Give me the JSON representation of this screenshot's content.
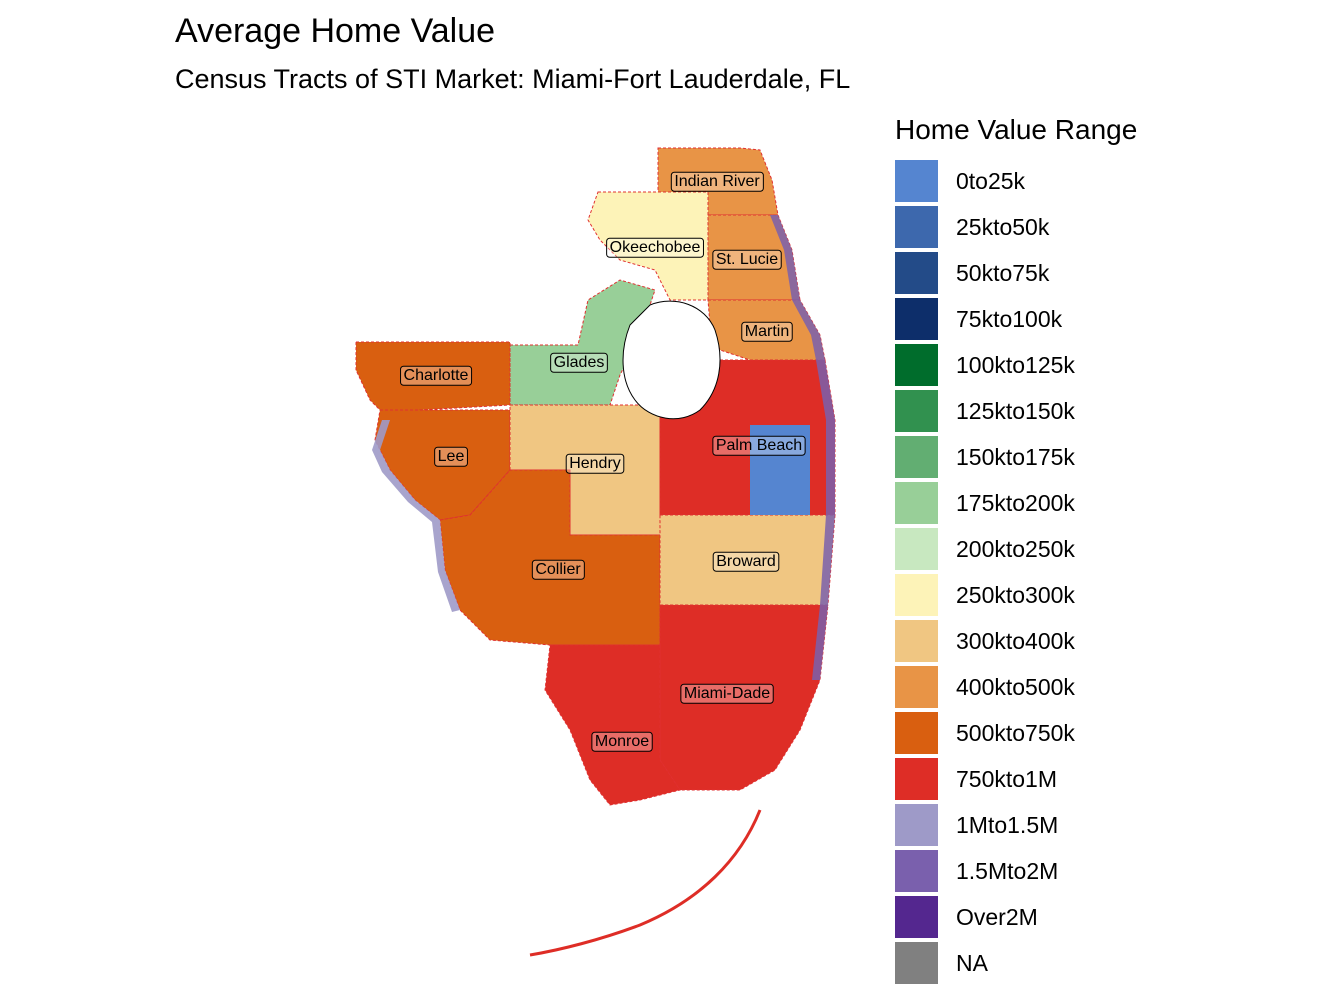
{
  "title": "Average Home Value",
  "subtitle": "Census Tracts of STI Market: Miami-Fort Lauderdale, FL",
  "legend": {
    "title": "Home Value Range",
    "items": [
      {
        "label": "0to25k",
        "color": "#5585d0"
      },
      {
        "label": "25kto50k",
        "color": "#3d68ad"
      },
      {
        "label": "50kto75k",
        "color": "#234b88"
      },
      {
        "label": "75kto100k",
        "color": "#0d2e6a"
      },
      {
        "label": "100kto125k",
        "color": "#006d2c"
      },
      {
        "label": "125kto150k",
        "color": "#31914f"
      },
      {
        "label": "150kto175k",
        "color": "#62ae72"
      },
      {
        "label": "175kto200k",
        "color": "#98cf98"
      },
      {
        "label": "200kto250k",
        "color": "#c8e8c0"
      },
      {
        "label": "250kto300k",
        "color": "#fdf3b8"
      },
      {
        "label": "300kto400k",
        "color": "#f0c682"
      },
      {
        "label": "400kto500k",
        "color": "#e89446"
      },
      {
        "label": "500kto750k",
        "color": "#d95f10"
      },
      {
        "label": "750kto1M",
        "color": "#de2d26"
      },
      {
        "label": "1Mto1.5M",
        "color": "#9e9ac8"
      },
      {
        "label": "1.5Mto2M",
        "color": "#7a60ad"
      },
      {
        "label": "Over2M",
        "color": "#54278f"
      },
      {
        "label": "NA",
        "color": "#808080"
      }
    ]
  },
  "counties": [
    {
      "name": "Indian River",
      "range": "400kto500k"
    },
    {
      "name": "Okeechobee",
      "range": "250kto300k"
    },
    {
      "name": "St. Lucie",
      "range": "400kto500k"
    },
    {
      "name": "Martin",
      "range": "400kto500k"
    },
    {
      "name": "Glades",
      "range": "175kto200k"
    },
    {
      "name": "Charlotte",
      "range": "500kto750k"
    },
    {
      "name": "Lee",
      "range": "500kto750k"
    },
    {
      "name": "Hendry",
      "range": "300kto400k"
    },
    {
      "name": "Palm Beach",
      "range": "750kto1M"
    },
    {
      "name": "Broward",
      "range": "300kto400k"
    },
    {
      "name": "Collier",
      "range": "500kto750k"
    },
    {
      "name": "Miami-Dade",
      "range": "750kto1M"
    },
    {
      "name": "Monroe",
      "range": "750kto1M"
    }
  ]
}
